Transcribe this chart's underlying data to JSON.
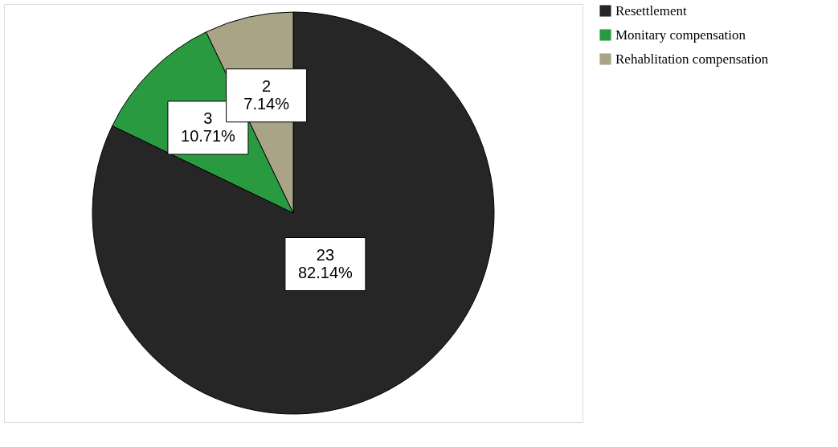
{
  "chart_data": {
    "type": "pie",
    "categories": [
      "Resettlement",
      "Monitary  compensation",
      "Rehablitation compensation"
    ],
    "values": [
      23,
      3,
      2
    ],
    "colors": [
      "#262626",
      "#2a9a40",
      "#aaa487"
    ],
    "value_labels": [
      "23\n82.14%",
      "3\n10.71%",
      "2\n7.14%"
    ],
    "legend": "top right"
  }
}
